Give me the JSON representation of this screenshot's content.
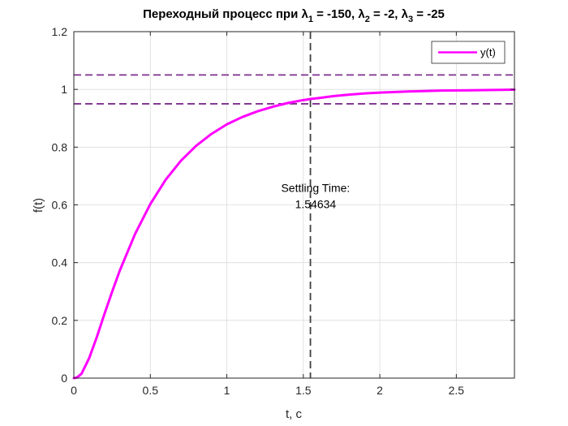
{
  "chart_data": {
    "type": "line",
    "title": {
      "prefix": "Переходный процесс при ",
      "l1_symbol": "λ",
      "l1_sub": "1",
      "l1_value": " = -150, ",
      "l2_symbol": "λ",
      "l2_sub": "2",
      "l2_value": " = -2, ",
      "l3_symbol": "λ",
      "l3_sub": "3",
      "l3_value": " = -25"
    },
    "xlabel": "t, c",
    "ylabel": "f(t)",
    "xlim": [
      0,
      2.88
    ],
    "ylim": [
      0,
      1.2
    ],
    "xticks": [
      0,
      0.5,
      1,
      1.5,
      2,
      2.5
    ],
    "xtick_labels": [
      "0",
      "0.5",
      "1",
      "1.5",
      "2",
      "2.5"
    ],
    "yticks": [
      0,
      0.2,
      0.4,
      0.6,
      0.8,
      1.0,
      1.2
    ],
    "ytick_labels": [
      "0",
      "0.2",
      "0.4",
      "0.6",
      "0.8",
      "1",
      "1.2"
    ],
    "grid": true,
    "legend_position": "top-right",
    "series": [
      {
        "name": "y(t)",
        "color": "#ff00ff",
        "x": [
          0,
          0.02,
          0.05,
          0.1,
          0.15,
          0.2,
          0.25,
          0.3,
          0.4,
          0.5,
          0.6,
          0.7,
          0.8,
          0.9,
          1.0,
          1.1,
          1.2,
          1.3,
          1.4,
          1.5,
          1.55,
          1.6,
          1.7,
          1.8,
          1.9,
          2.0,
          2.2,
          2.4,
          2.6,
          2.88
        ],
        "y": [
          0,
          0.002,
          0.015,
          0.069,
          0.142,
          0.222,
          0.299,
          0.372,
          0.499,
          0.603,
          0.687,
          0.753,
          0.805,
          0.846,
          0.879,
          0.904,
          0.924,
          0.94,
          0.953,
          0.963,
          0.967,
          0.97,
          0.977,
          0.982,
          0.986,
          0.989,
          0.993,
          0.996,
          0.997,
          0.999
        ]
      }
    ],
    "reference_lines": {
      "upper_band": 1.05,
      "lower_band": 0.95,
      "band_color": "#7e2f8e",
      "settling_x": 1.54634,
      "settling_color": "#404040"
    },
    "annotation": {
      "line1": "Settling Time:",
      "line2": "1.54634",
      "x": 1.58,
      "y": 0.645
    }
  }
}
